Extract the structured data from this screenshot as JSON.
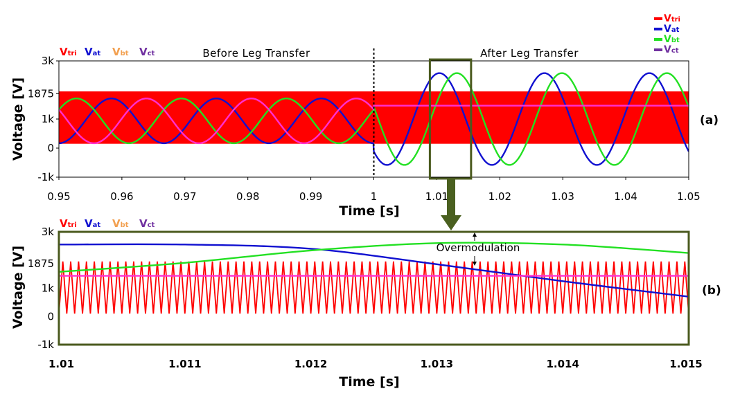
{
  "colors": {
    "v_tri": "#ff0000",
    "v_at": "#1010d0",
    "v_bt": "#22e022",
    "v_ct": "#ff2fd0",
    "label_v_bt": "#f2a050",
    "label_v_ct": "#7030a0",
    "box": "#4a5a1e",
    "arrow": "#4a6020"
  },
  "legend": {
    "items": [
      {
        "main": "V",
        "sub": "tri",
        "color": "#ff0000"
      },
      {
        "main": "V",
        "sub": "at",
        "color": "#1010d0"
      },
      {
        "main": "V",
        "sub": "bt",
        "color": "#22e022"
      },
      {
        "main": "V",
        "sub": "ct",
        "color": "#7030a0"
      }
    ]
  },
  "chart_data": [
    {
      "id": "a",
      "panel_label": "(a)",
      "type": "line",
      "xlabel": "Time [s]",
      "ylabel": "Voltage [V]",
      "xlim": [
        0.95,
        1.05
      ],
      "ylim": [
        -1000,
        3000
      ],
      "xticks": [
        "0.95",
        "0.96",
        "0.97",
        "0.98",
        "0.99",
        "1",
        "1.01",
        "1.02",
        "1.03",
        "1.04",
        "1.05"
      ],
      "yticks": [
        {
          "value": 3000,
          "label": "3k"
        },
        {
          "value": 1875,
          "label": "1875"
        },
        {
          "value": 1000,
          "label": "1k"
        },
        {
          "value": 0,
          "label": "0"
        },
        {
          "value": -1000,
          "label": "-1k"
        }
      ],
      "signal_labels": [
        "V|tri",
        "V|at",
        "V|bt",
        "V|ct"
      ],
      "annotations": {
        "before": "Before Leg Transfer",
        "after": "After Leg Transfer"
      },
      "transfer_time": 1.0,
      "triangle_carrier": {
        "name": "Vtri",
        "min": 150,
        "max": 1950
      },
      "series": [
        {
          "name": "Vat",
          "before": {
            "offset": 937.5,
            "amplitude": 770,
            "freq_hz": 60,
            "phase_deg": 270
          },
          "after": {
            "offset": 1000,
            "amplitude": 1580,
            "freq_hz": 60,
            "phase_deg": 225
          }
        },
        {
          "name": "Vbt",
          "before": {
            "offset": 937.5,
            "amplitude": 770,
            "freq_hz": 60,
            "phase_deg": 30
          },
          "after": {
            "offset": 1000,
            "amplitude": 1580,
            "freq_hz": 60,
            "phase_deg": 165
          }
        },
        {
          "name": "Vct",
          "before": {
            "offset": 937.5,
            "amplitude": 770,
            "freq_hz": 60,
            "phase_deg": 150
          },
          "after": {
            "offset": 1460,
            "amplitude": 0,
            "freq_hz": 60,
            "phase_deg": 0
          }
        }
      ]
    },
    {
      "id": "b",
      "panel_label": "(b)",
      "type": "line",
      "xlabel": "Time [s]",
      "ylabel": "Voltage [V]",
      "xlim": [
        1.01,
        1.015
      ],
      "ylim": [
        -1000,
        3000
      ],
      "xticks": [
        "1.01",
        "1.011",
        "1.012",
        "1.013",
        "1.014",
        "1.015"
      ],
      "yticks": [
        {
          "value": 3000,
          "label": "3k"
        },
        {
          "value": 1875,
          "label": "1875"
        },
        {
          "value": 1000,
          "label": "1k"
        },
        {
          "value": 0,
          "label": "0"
        },
        {
          "value": -1000,
          "label": "-1k"
        }
      ],
      "signal_labels": [
        "V|tri",
        "V|at",
        "V|bt",
        "V|ct"
      ],
      "annotation": "Overmodulation",
      "triangle_carrier": {
        "name": "Vtri",
        "min": 100,
        "max": 1950,
        "cycles": 80
      },
      "series": [
        {
          "name": "Vat",
          "points": [
            [
              1.01,
              2550
            ],
            [
              1.011,
              2550
            ],
            [
              1.012,
              2400
            ],
            [
              1.013,
              1850
            ],
            [
              1.014,
              1250
            ],
            [
              1.015,
              700
            ]
          ]
        },
        {
          "name": "Vbt",
          "points": [
            [
              1.01,
              1580
            ],
            [
              1.011,
              1900
            ],
            [
              1.012,
              2340
            ],
            [
              1.013,
              2600
            ],
            [
              1.014,
              2550
            ],
            [
              1.015,
              2250
            ]
          ]
        },
        {
          "name": "Vct",
          "points": [
            [
              1.01,
              1440
            ],
            [
              1.015,
              1440
            ]
          ]
        }
      ]
    }
  ]
}
